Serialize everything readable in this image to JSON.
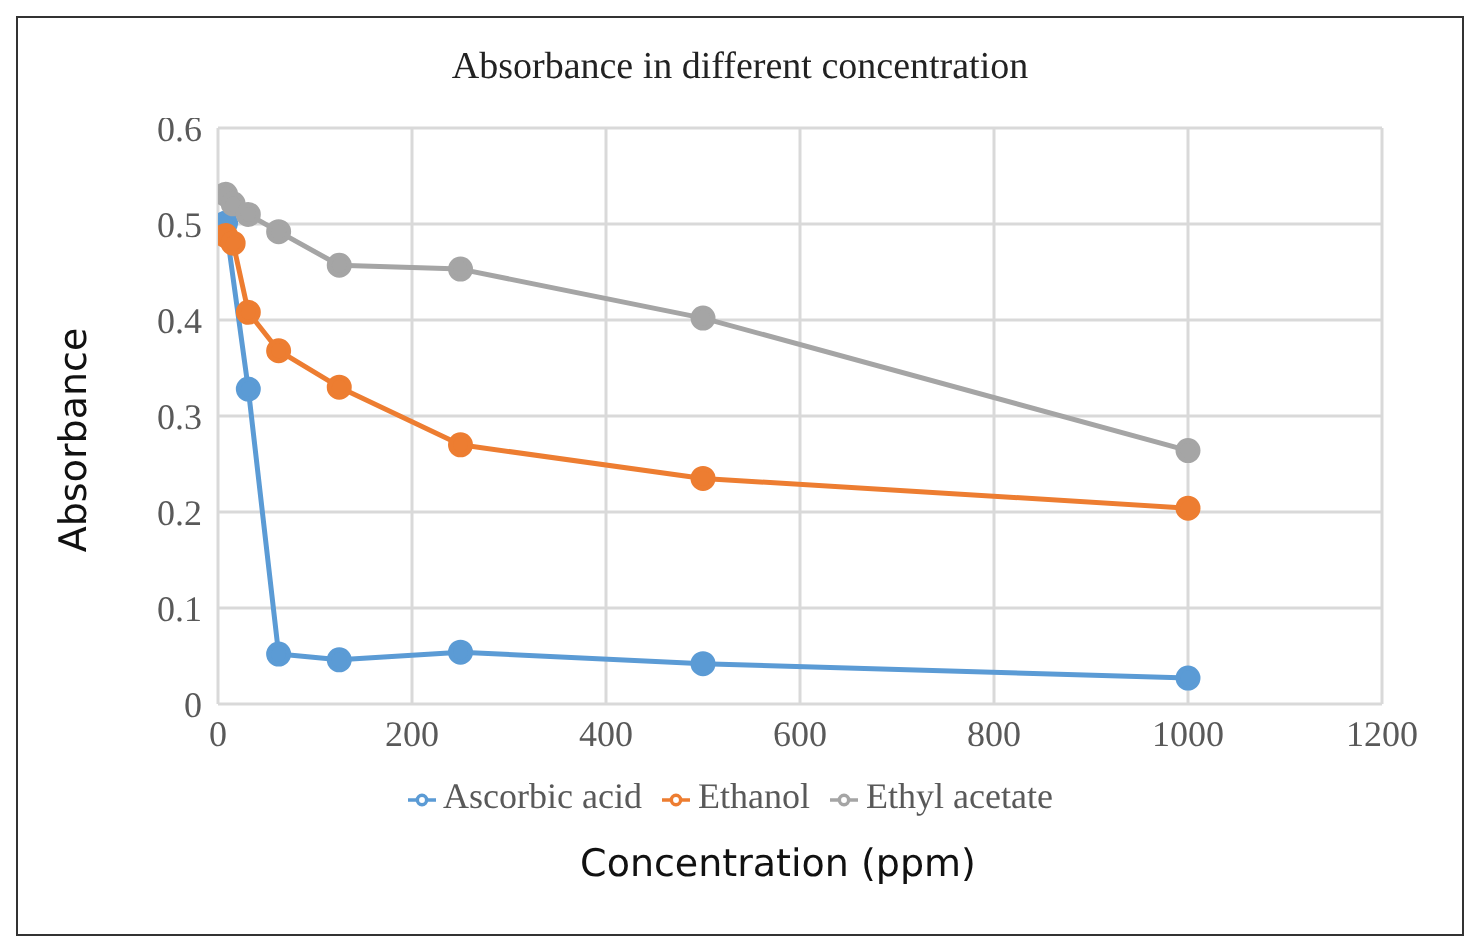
{
  "chart_data": {
    "type": "line",
    "title": "Absorbance in different concentration",
    "xlabel": "Concentration (ppm)",
    "ylabel": "Absorbance",
    "x": [
      7.8,
      15.6,
      31.25,
      62.5,
      125,
      250,
      500,
      1000
    ],
    "series": [
      {
        "name": "Ascorbic acid",
        "color": "#5b9bd5",
        "values": [
          0.501,
          null,
          0.328,
          0.052,
          0.046,
          0.054,
          0.042,
          0.027
        ]
      },
      {
        "name": "Ethanol",
        "color": "#ed7d31",
        "values": [
          0.488,
          0.48,
          0.408,
          0.368,
          0.33,
          0.27,
          0.235,
          0.204
        ]
      },
      {
        "name": "Ethyl acetate",
        "color": "#a5a5a5",
        "values": [
          0.531,
          0.521,
          0.51,
          0.492,
          0.457,
          0.453,
          0.402,
          0.264
        ]
      }
    ],
    "xlim": [
      0,
      1200
    ],
    "xticks": [
      0,
      200,
      400,
      600,
      800,
      1000,
      1200
    ],
    "ylim": [
      0,
      0.6
    ],
    "yticks": [
      0,
      0.1,
      0.2,
      0.3,
      0.4,
      0.5,
      0.6
    ],
    "grid": true,
    "legend": "bottom",
    "marker": "circle",
    "line_style": "solid"
  }
}
